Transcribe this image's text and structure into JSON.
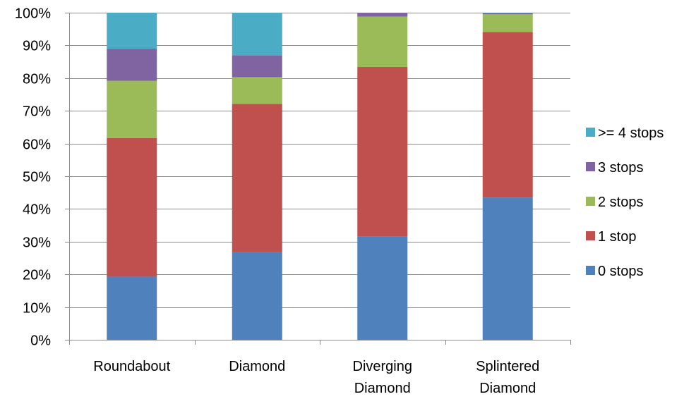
{
  "chart_data": {
    "type": "bar",
    "stacked": true,
    "percent": true,
    "title": "",
    "xlabel": "",
    "ylabel": "",
    "ylim": [
      0,
      100
    ],
    "y_ticks": [
      "0%",
      "10%",
      "20%",
      "30%",
      "40%",
      "50%",
      "60%",
      "70%",
      "80%",
      "90%",
      "100%"
    ],
    "categories": [
      [
        "Roundabout"
      ],
      [
        "Diamond"
      ],
      [
        "Diverging",
        "Diamond"
      ],
      [
        "Splintered",
        "Diamond"
      ]
    ],
    "series": [
      {
        "name": "0 stops",
        "color": "#4F81BD",
        "values": [
          19.3,
          26.8,
          31.6,
          43.5
        ]
      },
      {
        "name": "1 stop",
        "color": "#C0504D",
        "values": [
          42.4,
          45.3,
          51.8,
          50.6
        ]
      },
      {
        "name": "2 stops",
        "color": "#9BBB59",
        "values": [
          17.5,
          8.2,
          15.4,
          5.4
        ]
      },
      {
        "name": "3 stops",
        "color": "#8064A2",
        "values": [
          9.8,
          6.7,
          1.2,
          0.4
        ]
      },
      {
        "name": ">= 4 stops",
        "color": "#4BACC6",
        "values": [
          11.0,
          13.0,
          0.0,
          0.1
        ]
      }
    ],
    "legend_position": "right",
    "gridlines": true
  }
}
